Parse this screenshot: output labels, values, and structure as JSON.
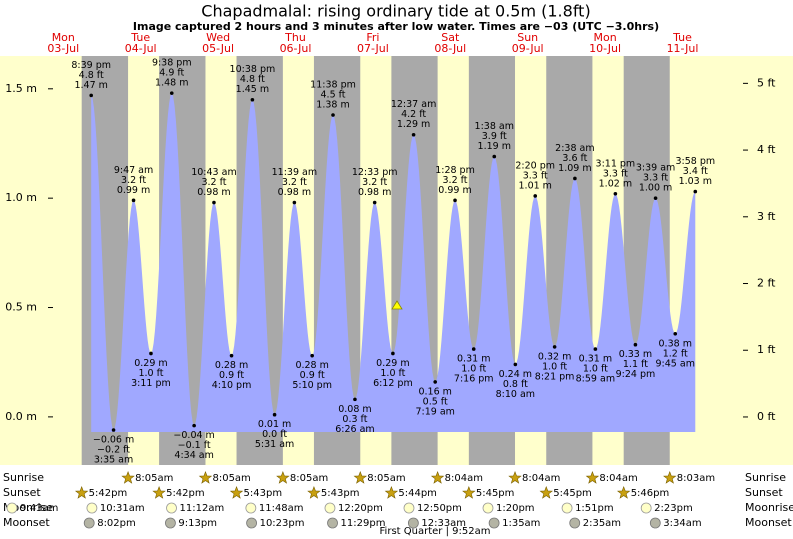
{
  "chart_data": {
    "type": "area",
    "title": "Chapadmalal: rising  ordinary tide at 0.5m (1.8ft)",
    "subtitle": "Image captured 2 hours and 3 minutes after low water. Times are −03 (UTC −3.0hrs)",
    "ylim": [
      -0.22,
      1.65
    ],
    "yticks": [
      {
        "value": 0,
        "label": "0.0 m"
      },
      {
        "value": 0.5,
        "label": "0.5 m"
      },
      {
        "value": 1,
        "label": "1.0 m"
      },
      {
        "value": 1.5,
        "label": "1.5 m"
      }
    ],
    "y2lim": [
      -0.72,
      5.41
    ],
    "y2ticks": [
      {
        "value": 0,
        "label": "0 ft"
      },
      {
        "value": 1,
        "label": "1 ft"
      },
      {
        "value": 2,
        "label": "2 ft"
      },
      {
        "value": 3,
        "label": "3 ft"
      },
      {
        "value": 4,
        "label": "4 ft"
      },
      {
        "value": 5,
        "label": "5 ft"
      }
    ],
    "row_labels": {
      "sunrise": "Sunrise",
      "sunset": "Sunset",
      "moonrise": "Moonrise",
      "moonset": "Moonset"
    },
    "moon_phase": "First Quarter | 9:52am",
    "days": [
      {
        "name": "Mon",
        "date": "03-Jul",
        "sunset": "5:42pm",
        "moonrise": "9:43am",
        "moonset": "8:02pm",
        "tides": [
          {
            "time": "8:39 pm",
            "ft": 4.8,
            "ft_label": "4.8 ft",
            "m": 1.47,
            "m_label": "1.47 m"
          }
        ]
      },
      {
        "name": "Tue",
        "date": "04-Jul",
        "sunrise": "8:05am",
        "sunset": "5:42pm",
        "moonrise": "10:31am",
        "moonset": "9:13pm",
        "tides": [
          {
            "time": "3:35 am",
            "ft": -0.2,
            "ft_label": "−0.2 ft",
            "m": -0.06,
            "m_label": "−0.06 m"
          },
          {
            "time": "9:47 am",
            "ft": 3.2,
            "ft_label": "3.2 ft",
            "m": 0.99,
            "m_label": "0.99 m"
          },
          {
            "time": "3:11 pm",
            "ft": 1.0,
            "ft_label": "1.0 ft",
            "m": 0.29,
            "m_label": "0.29 m"
          },
          {
            "time": "9:38 pm",
            "ft": 4.9,
            "ft_label": "4.9 ft",
            "m": 1.48,
            "m_label": "1.48 m"
          }
        ]
      },
      {
        "name": "Wed",
        "date": "05-Jul",
        "sunrise": "8:05am",
        "sunset": "5:43pm",
        "moonrise": "11:12am",
        "moonset": "10:23pm",
        "tides": [
          {
            "time": "4:34 am",
            "ft": -0.1,
            "ft_label": "−0.1 ft",
            "m": -0.04,
            "m_label": "−0.04 m"
          },
          {
            "time": "10:43 am",
            "ft": 3.2,
            "ft_label": "3.2 ft",
            "m": 0.98,
            "m_label": "0.98 m"
          },
          {
            "time": "4:10 pm",
            "ft": 0.9,
            "ft_label": "0.9 ft",
            "m": 0.28,
            "m_label": "0.28 m"
          },
          {
            "time": "10:38 pm",
            "ft": 4.8,
            "ft_label": "4.8 ft",
            "m": 1.45,
            "m_label": "1.45 m"
          }
        ]
      },
      {
        "name": "Thu",
        "date": "06-Jul",
        "sunrise": "8:05am",
        "sunset": "5:43pm",
        "moonrise": "11:48am",
        "moonset": "11:29pm",
        "tides": [
          {
            "time": "5:31 am",
            "ft": 0.0,
            "ft_label": "0.0 ft",
            "m": 0.01,
            "m_label": "0.01 m"
          },
          {
            "time": "11:39 am",
            "ft": 3.2,
            "ft_label": "3.2 ft",
            "m": 0.98,
            "m_label": "0.98 m"
          },
          {
            "time": "5:10 pm",
            "ft": 0.9,
            "ft_label": "0.9 ft",
            "m": 0.28,
            "m_label": "0.28 m"
          },
          {
            "time": "11:38 pm",
            "ft": 4.5,
            "ft_label": "4.5 ft",
            "m": 1.38,
            "m_label": "1.38 m"
          }
        ]
      },
      {
        "name": "Fri",
        "date": "07-Jul",
        "sunrise": "8:05am",
        "sunset": "5:44pm",
        "moonrise": "12:20pm",
        "tides": [
          {
            "time": "6:26 am",
            "ft": 0.3,
            "ft_label": "0.3 ft",
            "m": 0.08,
            "m_label": "0.08 m"
          },
          {
            "time": "12:33 pm",
            "ft": 3.2,
            "ft_label": "3.2 ft",
            "m": 0.98,
            "m_label": "0.98 m"
          },
          {
            "time": "6:12 pm",
            "ft": 1.0,
            "ft_label": "1.0 ft",
            "m": 0.29,
            "m_label": "0.29 m"
          }
        ]
      },
      {
        "name": "Sat",
        "date": "08-Jul",
        "sunrise": "8:04am",
        "sunset": "5:45pm",
        "moonrise": "12:50pm",
        "moonset": "12:33am",
        "tides": [
          {
            "time": "12:37 am",
            "ft": 4.2,
            "ft_label": "4.2 ft",
            "m": 1.29,
            "m_label": "1.29 m"
          },
          {
            "time": "7:19 am",
            "ft": 0.5,
            "ft_label": "0.5 ft",
            "m": 0.16,
            "m_label": "0.16 m"
          },
          {
            "time": "1:28 pm",
            "ft": 3.2,
            "ft_label": "3.2 ft",
            "m": 0.99,
            "m_label": "0.99 m"
          },
          {
            "time": "7:16 pm",
            "ft": 1.0,
            "ft_label": "1.0 ft",
            "m": 0.31,
            "m_label": "0.31 m"
          }
        ]
      },
      {
        "name": "Sun",
        "date": "09-Jul",
        "sunrise": "8:04am",
        "sunset": "5:45pm",
        "moonrise": "1:20pm",
        "moonset": "1:35am",
        "tides": [
          {
            "time": "1:38 am",
            "ft": 3.9,
            "ft_label": "3.9 ft",
            "m": 1.19,
            "m_label": "1.19 m"
          },
          {
            "time": "8:10 am",
            "ft": 0.8,
            "ft_label": "0.8 ft",
            "m": 0.24,
            "m_label": "0.24 m"
          },
          {
            "time": "2:20 pm",
            "ft": 3.3,
            "ft_label": "3.3 ft",
            "m": 1.01,
            "m_label": "1.01 m"
          },
          {
            "time": "8:21 pm",
            "ft": 1.0,
            "ft_label": "1.0 ft",
            "m": 0.32,
            "m_label": "0.32 m"
          }
        ]
      },
      {
        "name": "Mon",
        "date": "10-Jul",
        "sunrise": "8:04am",
        "sunset": "5:46pm",
        "moonrise": "1:51pm",
        "moonset": "2:35am",
        "tides": [
          {
            "time": "2:38 am",
            "ft": 3.6,
            "ft_label": "3.6 ft",
            "m": 1.09,
            "m_label": "1.09 m"
          },
          {
            "time": "8:59 am",
            "ft": 1.0,
            "ft_label": "1.0 ft",
            "m": 0.31,
            "m_label": "0.31 m"
          },
          {
            "time": "3:11 pm",
            "ft": 3.3,
            "ft_label": "3.3 ft",
            "m": 1.02,
            "m_label": "1.02 m"
          },
          {
            "time": "9:24 pm",
            "ft": 1.1,
            "ft_label": "1.1 ft",
            "m": 0.33,
            "m_label": "0.33 m"
          }
        ]
      },
      {
        "name": "Tue",
        "date": "11-Jul",
        "sunrise": "8:03am",
        "moonrise": "2:23pm",
        "moonset": "3:34am",
        "tides": [
          {
            "time": "3:39 am",
            "ft": 3.3,
            "ft_label": "3.3 ft",
            "m": 1.0,
            "m_label": "1.00 m"
          },
          {
            "time": "9:45 am",
            "ft": 1.2,
            "ft_label": "1.2 ft",
            "m": 0.38,
            "m_label": "0.38 m"
          },
          {
            "time": "3:58 pm",
            "ft": 3.4,
            "ft_label": "3.4 ft",
            "m": 1.03,
            "m_label": "1.03 m"
          }
        ]
      }
    ]
  }
}
